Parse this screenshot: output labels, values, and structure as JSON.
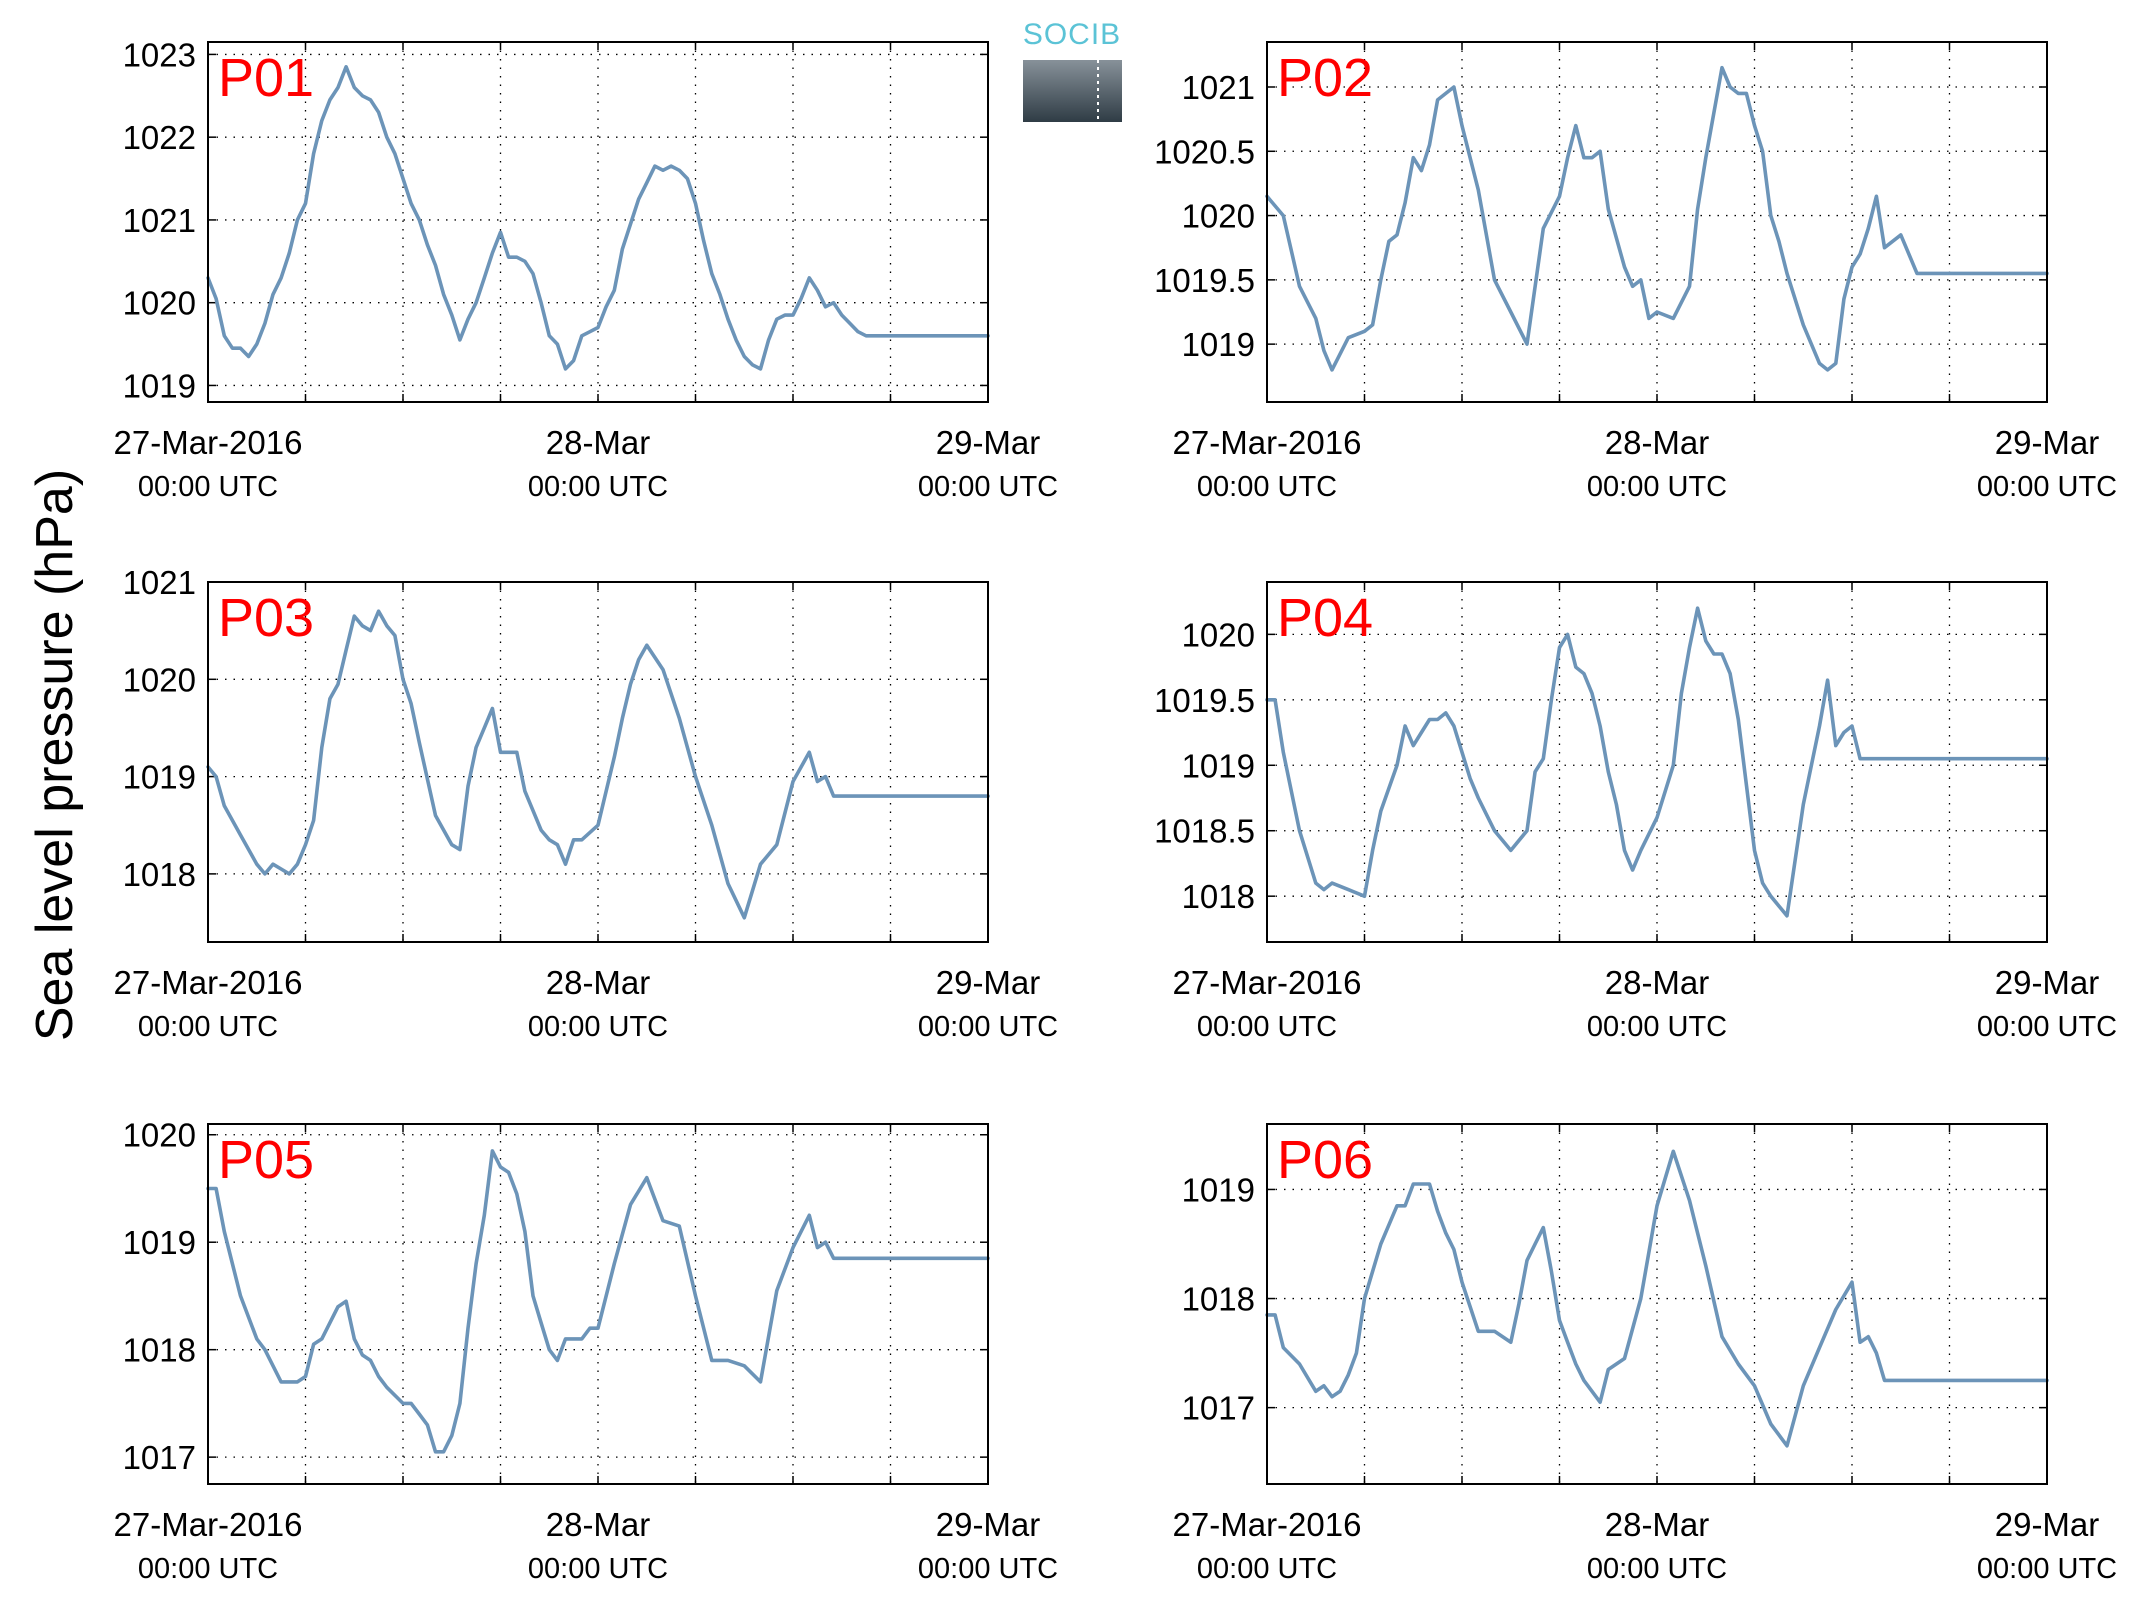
{
  "ylabel": "Sea level pressure (hPa)",
  "logo": {
    "text": "SOCIB"
  },
  "colors": {
    "line": "#6c94b8",
    "panel_label": "#ff0000",
    "logo_text": "#5bc3d6",
    "logo_top": "#8a949c",
    "logo_bottom": "#2f3c45"
  },
  "x_ticks": [
    {
      "x": 0,
      "line1": "27-Mar-2016",
      "line2": "00:00 UTC"
    },
    {
      "x": 24,
      "line1": "28-Mar",
      "line2": "00:00 UTC"
    },
    {
      "x": 48,
      "line1": "29-Mar",
      "line2": "00:00 UTC"
    }
  ],
  "chart_data": [
    {
      "type": "line",
      "title": "P01",
      "xlim": [
        0,
        48
      ],
      "ylim": [
        1018.8,
        1023.15
      ],
      "yticks": [
        1019,
        1020,
        1021,
        1022,
        1023
      ],
      "ytick_labels": [
        "1019",
        "1020",
        "1021",
        "1022",
        "1023"
      ],
      "grid": true,
      "x_unit": "hours since 27-Mar-2016 00:00 UTC",
      "x": [
        0,
        0.5,
        1,
        1.5,
        2,
        2.5,
        3,
        3.5,
        4,
        4.5,
        5,
        5.5,
        6,
        6.5,
        7,
        7.5,
        8,
        8.5,
        9,
        9.5,
        10,
        10.5,
        11,
        11.5,
        12,
        12.5,
        13,
        13.5,
        14,
        14.5,
        15,
        15.5,
        16,
        16.5,
        17,
        17.5,
        18,
        18.5,
        19,
        19.5,
        20,
        20.5,
        21,
        21.5,
        22,
        22.5,
        23,
        23.5,
        24,
        24.5,
        25,
        25.5,
        26,
        26.5,
        27,
        27.5,
        28,
        28.5,
        29,
        29.5,
        30,
        30.5,
        31,
        31.5,
        32,
        32.5,
        33,
        33.5,
        34,
        34.5,
        35,
        35.5,
        36,
        36.5,
        37,
        37.5,
        38,
        38.5,
        39,
        39.5,
        40,
        40.5,
        41,
        41.5,
        42,
        42.5,
        43,
        43.5,
        44,
        44.5,
        45,
        45.5,
        46,
        46.5,
        47,
        47.5,
        48
      ],
      "y": [
        1020.3,
        1020.05,
        1019.6,
        1019.45,
        1019.45,
        1019.35,
        1019.5,
        1019.75,
        1020.1,
        1020.3,
        1020.6,
        1021.0,
        1021.2,
        1021.8,
        1022.2,
        1022.45,
        1022.6,
        1022.85,
        1022.6,
        1022.5,
        1022.45,
        1022.3,
        1022.0,
        1021.8,
        1021.5,
        1021.2,
        1021.0,
        1020.7,
        1020.45,
        1020.1,
        1019.85,
        1019.55,
        1019.8,
        1020.0,
        1020.3,
        1020.6,
        1020.85,
        1020.55,
        1020.55,
        1020.5,
        1020.35,
        1020.0,
        1019.6,
        1019.5,
        1019.2,
        1019.3,
        1019.6,
        1019.65,
        1019.7,
        1019.95,
        1020.15,
        1020.65,
        1020.95,
        1021.25,
        1021.45,
        1021.65,
        1021.6,
        1021.65,
        1021.6,
        1021.5,
        1021.2,
        1020.75,
        1020.35,
        1020.1,
        1019.8,
        1019.55,
        1019.35,
        1019.25,
        1019.2,
        1019.55,
        1019.8,
        1019.85,
        1019.85,
        1020.05,
        1020.3,
        1020.15,
        1019.95,
        1020.0,
        1019.85,
        1019.75,
        1019.65,
        1019.6,
        1019.6,
        1019.6,
        1019.6,
        1019.6,
        1019.6,
        1019.6,
        1019.6,
        1019.6,
        1019.6,
        1019.6,
        1019.6,
        1019.6,
        1019.6,
        1019.6,
        1019.6
      ]
    },
    {
      "type": "line",
      "title": "P02",
      "xlim": [
        0,
        48
      ],
      "ylim": [
        1018.55,
        1021.35
      ],
      "yticks": [
        1019,
        1019.5,
        1020,
        1020.5,
        1021
      ],
      "ytick_labels": [
        "1019",
        "1019.5",
        "1020",
        "1020.5",
        "1021"
      ],
      "grid": true,
      "x_unit": "hours since 27-Mar-2016 00:00 UTC",
      "x": [
        0,
        1,
        2,
        3,
        3.5,
        4,
        5,
        6,
        6.5,
        7,
        7.5,
        8,
        8.5,
        9,
        9.5,
        10,
        10.5,
        11,
        11.5,
        12,
        12.5,
        13,
        14,
        15,
        16,
        17,
        18,
        18.5,
        19,
        19.5,
        20,
        20.5,
        21,
        22,
        22.5,
        23,
        23.5,
        24,
        25,
        26,
        26.5,
        27,
        27.5,
        28,
        28.5,
        29,
        29.5,
        30,
        30.5,
        31,
        31.5,
        32,
        33,
        34,
        34.5,
        35,
        35.5,
        36,
        36.5,
        37,
        37.5,
        38,
        39,
        40,
        41,
        41.5,
        42,
        42.5,
        43,
        44,
        45,
        45.5,
        46,
        46.5,
        47,
        47.5,
        48
      ],
      "y": [
        1020.15,
        1020.0,
        1019.45,
        1019.2,
        1018.95,
        1018.8,
        1019.05,
        1019.1,
        1019.15,
        1019.5,
        1019.8,
        1019.85,
        1020.1,
        1020.45,
        1020.35,
        1020.55,
        1020.9,
        1020.95,
        1021.0,
        1020.7,
        1020.45,
        1020.2,
        1019.5,
        1019.25,
        1019.0,
        1019.9,
        1020.15,
        1020.45,
        1020.7,
        1020.45,
        1020.45,
        1020.5,
        1020.05,
        1019.6,
        1019.45,
        1019.5,
        1019.2,
        1019.25,
        1019.2,
        1019.45,
        1020.05,
        1020.45,
        1020.8,
        1021.15,
        1021.0,
        1020.95,
        1020.95,
        1020.7,
        1020.5,
        1020.0,
        1019.8,
        1019.55,
        1019.15,
        1018.85,
        1018.8,
        1018.85,
        1019.35,
        1019.6,
        1019.7,
        1019.9,
        1020.15,
        1019.75,
        1019.85,
        1019.55,
        1019.55,
        1019.55,
        1019.55,
        1019.55,
        1019.55,
        1019.55,
        1019.55,
        1019.55,
        1019.55,
        1019.55,
        1019.55,
        1019.55,
        1019.55
      ]
    },
    {
      "type": "line",
      "title": "P03",
      "xlim": [
        0,
        48
      ],
      "ylim": [
        1017.3,
        1021.0
      ],
      "yticks": [
        1018,
        1019,
        1020,
        1021
      ],
      "ytick_labels": [
        "1018",
        "1019",
        "1020",
        "1021"
      ],
      "grid": true,
      "x_unit": "hours since 27-Mar-2016 00:00 UTC",
      "x": [
        0,
        0.5,
        1,
        2,
        3,
        3.5,
        4,
        4.5,
        5,
        5.5,
        6,
        6.5,
        7,
        7.5,
        8,
        8.5,
        9,
        9.5,
        10,
        10.5,
        11,
        11.5,
        12,
        12.5,
        13,
        14,
        15,
        15.5,
        16,
        16.5,
        17,
        17.5,
        18,
        18.5,
        19,
        19.5,
        20,
        20.5,
        21,
        21.5,
        22,
        22.5,
        23,
        24,
        25,
        25.5,
        26,
        26.5,
        27,
        28,
        29,
        30,
        31,
        32,
        33,
        34,
        35,
        36,
        37,
        37.5,
        38,
        38.5,
        39,
        39.5,
        40,
        41,
        42,
        43,
        44,
        45,
        46,
        47,
        48
      ],
      "y": [
        1019.1,
        1019.0,
        1018.7,
        1018.4,
        1018.1,
        1018.0,
        1018.1,
        1018.05,
        1018.0,
        1018.1,
        1018.3,
        1018.55,
        1019.3,
        1019.8,
        1019.95,
        1020.3,
        1020.65,
        1020.55,
        1020.5,
        1020.7,
        1020.55,
        1020.45,
        1020.0,
        1019.75,
        1019.35,
        1018.6,
        1018.3,
        1018.25,
        1018.9,
        1019.3,
        1019.5,
        1019.7,
        1019.25,
        1019.25,
        1019.25,
        1018.85,
        1018.65,
        1018.45,
        1018.35,
        1018.3,
        1018.1,
        1018.35,
        1018.35,
        1018.5,
        1019.2,
        1019.6,
        1019.95,
        1020.2,
        1020.35,
        1020.1,
        1019.6,
        1019.0,
        1018.5,
        1017.9,
        1017.55,
        1018.1,
        1018.3,
        1018.95,
        1019.25,
        1018.95,
        1019.0,
        1018.8,
        1018.8,
        1018.8,
        1018.8,
        1018.8,
        1018.8,
        1018.8,
        1018.8,
        1018.8,
        1018.8,
        1018.8,
        1018.8
      ]
    },
    {
      "type": "line",
      "title": "P04",
      "xlim": [
        0,
        48
      ],
      "ylim": [
        1017.65,
        1020.4
      ],
      "yticks": [
        1018,
        1018.5,
        1019,
        1019.5,
        1020
      ],
      "ytick_labels": [
        "1018",
        "1018.5",
        "1019",
        "1019.5",
        "1020"
      ],
      "grid": true,
      "x_unit": "hours since 27-Mar-2016 00:00 UTC",
      "x": [
        0,
        0.5,
        1,
        2,
        3,
        3.5,
        4,
        5,
        6,
        6.5,
        7,
        8,
        8.5,
        9,
        9.5,
        10,
        10.5,
        11,
        11.5,
        12,
        12.5,
        13,
        14,
        15,
        16,
        16.5,
        17,
        17.5,
        18,
        18.5,
        19,
        19.5,
        20,
        20.5,
        21,
        21.5,
        22,
        22.5,
        23,
        24,
        25,
        25.5,
        26,
        26.5,
        27,
        27.5,
        28,
        28.5,
        29,
        29.5,
        30,
        30.5,
        31,
        32,
        33,
        34,
        34.5,
        35,
        35.5,
        36,
        36.5,
        37,
        37.5,
        38,
        39,
        40,
        41,
        42,
        43,
        44,
        45,
        46,
        47,
        48
      ],
      "y": [
        1019.5,
        1019.5,
        1019.1,
        1018.5,
        1018.1,
        1018.05,
        1018.1,
        1018.05,
        1018.0,
        1018.35,
        1018.65,
        1019.0,
        1019.3,
        1019.15,
        1019.25,
        1019.35,
        1019.35,
        1019.4,
        1019.3,
        1019.1,
        1018.9,
        1018.75,
        1018.5,
        1018.35,
        1018.5,
        1018.95,
        1019.05,
        1019.5,
        1019.9,
        1020.0,
        1019.75,
        1019.7,
        1019.55,
        1019.3,
        1018.95,
        1018.7,
        1018.35,
        1018.2,
        1018.35,
        1018.6,
        1019.0,
        1019.55,
        1019.9,
        1020.2,
        1019.95,
        1019.85,
        1019.85,
        1019.7,
        1019.35,
        1018.85,
        1018.35,
        1018.1,
        1018.0,
        1017.85,
        1018.7,
        1019.3,
        1019.65,
        1019.15,
        1019.25,
        1019.3,
        1019.05,
        1019.05,
        1019.05,
        1019.05,
        1019.05,
        1019.05,
        1019.05,
        1019.05,
        1019.05,
        1019.05,
        1019.05,
        1019.05,
        1019.05,
        1019.05
      ]
    },
    {
      "type": "line",
      "title": "P05",
      "xlim": [
        0,
        48
      ],
      "ylim": [
        1016.75,
        1020.1
      ],
      "yticks": [
        1017,
        1018,
        1019,
        1020
      ],
      "ytick_labels": [
        "1017",
        "1018",
        "1019",
        "1020"
      ],
      "grid": true,
      "x_unit": "hours since 27-Mar-2016 00:00 UTC",
      "x": [
        0,
        0.5,
        1,
        2,
        3,
        3.5,
        4,
        4.5,
        5,
        5.5,
        6,
        6.5,
        7,
        8,
        8.5,
        9,
        9.5,
        10,
        10.5,
        11,
        12,
        12.5,
        13,
        13.5,
        14,
        14.5,
        15,
        15.5,
        16,
        16.5,
        17,
        17.5,
        18,
        18.5,
        19,
        19.5,
        20,
        20.5,
        21,
        21.5,
        22,
        23,
        23.5,
        24,
        25,
        26,
        27,
        28,
        29,
        30,
        31,
        32,
        33,
        34,
        35,
        36,
        37,
        37.5,
        38,
        38.5,
        39,
        40,
        41,
        42,
        43,
        44,
        45,
        46,
        47,
        48
      ],
      "y": [
        1019.5,
        1019.5,
        1019.1,
        1018.5,
        1018.1,
        1018.0,
        1017.85,
        1017.7,
        1017.7,
        1017.7,
        1017.75,
        1018.05,
        1018.1,
        1018.4,
        1018.45,
        1018.1,
        1017.95,
        1017.9,
        1017.75,
        1017.65,
        1017.5,
        1017.5,
        1017.4,
        1017.3,
        1017.05,
        1017.05,
        1017.2,
        1017.5,
        1018.2,
        1018.8,
        1019.25,
        1019.85,
        1019.7,
        1019.65,
        1019.45,
        1019.1,
        1018.5,
        1018.25,
        1018.0,
        1017.9,
        1018.1,
        1018.1,
        1018.2,
        1018.2,
        1018.8,
        1019.35,
        1019.6,
        1019.2,
        1019.15,
        1018.5,
        1017.9,
        1017.9,
        1017.85,
        1017.7,
        1018.55,
        1018.95,
        1019.25,
        1018.95,
        1019.0,
        1018.85,
        1018.85,
        1018.85,
        1018.85,
        1018.85,
        1018.85,
        1018.85,
        1018.85,
        1018.85,
        1018.85,
        1018.85
      ]
    },
    {
      "type": "line",
      "title": "P06",
      "xlim": [
        0,
        48
      ],
      "ylim": [
        1016.3,
        1019.6
      ],
      "yticks": [
        1017,
        1018,
        1019
      ],
      "ytick_labels": [
        "1017",
        "1018",
        "1019"
      ],
      "grid": true,
      "x_unit": "hours since 27-Mar-2016 00:00 UTC",
      "x": [
        0,
        0.5,
        1,
        2,
        3,
        3.5,
        4,
        4.5,
        5,
        5.5,
        6,
        7,
        8,
        8.5,
        9,
        9.5,
        10,
        10.5,
        11,
        11.5,
        12,
        13,
        14,
        15,
        15.5,
        16,
        16.5,
        17,
        17.5,
        18,
        18.5,
        19,
        19.5,
        20,
        20.5,
        21,
        22,
        23,
        24,
        25,
        26,
        26.5,
        27,
        28,
        29,
        30,
        31,
        32,
        33,
        34,
        35,
        36,
        36.5,
        37,
        37.5,
        38,
        38.5,
        39,
        40,
        41,
        42,
        43,
        44,
        45,
        46,
        47,
        48
      ],
      "y": [
        1017.85,
        1017.85,
        1017.55,
        1017.4,
        1017.15,
        1017.2,
        1017.1,
        1017.15,
        1017.3,
        1017.5,
        1018.0,
        1018.5,
        1018.85,
        1018.85,
        1019.05,
        1019.05,
        1019.05,
        1018.8,
        1018.6,
        1018.45,
        1018.15,
        1017.7,
        1017.7,
        1017.6,
        1017.95,
        1018.35,
        1018.5,
        1018.65,
        1018.25,
        1017.8,
        1017.6,
        1017.4,
        1017.25,
        1017.15,
        1017.05,
        1017.35,
        1017.45,
        1018.0,
        1018.85,
        1019.35,
        1018.9,
        1018.6,
        1018.3,
        1017.65,
        1017.4,
        1017.2,
        1016.85,
        1016.65,
        1017.2,
        1017.55,
        1017.9,
        1018.15,
        1017.6,
        1017.65,
        1017.5,
        1017.25,
        1017.25,
        1017.25,
        1017.25,
        1017.25,
        1017.25,
        1017.25,
        1017.25,
        1017.25,
        1017.25,
        1017.25,
        1017.25
      ]
    }
  ]
}
